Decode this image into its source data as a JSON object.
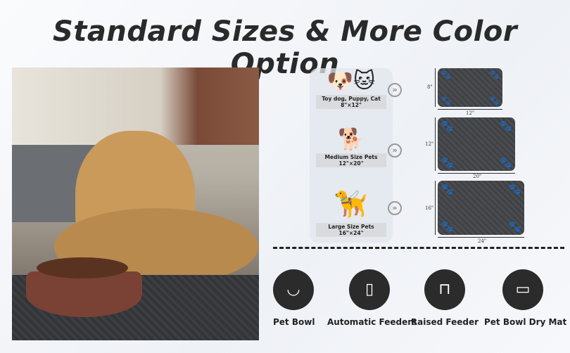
{
  "title": "Standard Sizes & More Color Option",
  "sizes": [
    {
      "pets": "Toy dog, Puppy, Cat",
      "size": "8\"×12\"",
      "width": "12\"",
      "height": "8\""
    },
    {
      "pets": "Medium Size Pets",
      "size": "12\"×20\"",
      "width": "20\"",
      "height": "12\""
    },
    {
      "pets": "Large Size Pets",
      "size": "16\"×24\"",
      "width": "24\"",
      "height": "16\""
    }
  ],
  "categories": [
    {
      "label": "Pet Bowl",
      "icon": "pet-bowl-icon"
    },
    {
      "label": "Automatic Feeders",
      "icon": "automatic-feeder-icon"
    },
    {
      "label": "Raised Feeder",
      "icon": "raised-feeder-icon"
    },
    {
      "label": "Pet Bowl Dry Mat",
      "icon": "dry-mat-icon"
    }
  ],
  "colors": {
    "mat": "#45474b",
    "accent": "#2b2b2b"
  }
}
